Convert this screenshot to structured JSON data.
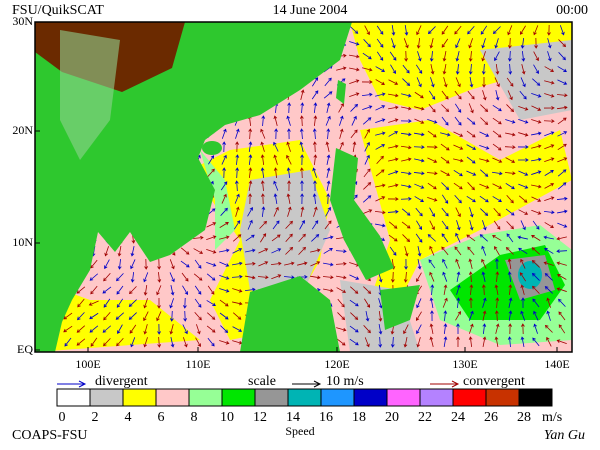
{
  "header": {
    "left": "FSU/QuikSCAT",
    "center": "14 June 2004",
    "right": "00:00"
  },
  "map": {
    "lat_labels": [
      "30N",
      "20N",
      "10N",
      "EQ"
    ],
    "lon_labels": [
      "100E",
      "110E",
      "120E",
      "130E",
      "140E"
    ]
  },
  "legend": {
    "divergent": "divergent",
    "divergent_color": "#0000c8",
    "scale": "scale",
    "scale_value": "10 m/s",
    "convergent": "convergent",
    "convergent_color": "#a00000"
  },
  "colorbar": {
    "labels": [
      0,
      2,
      4,
      6,
      8,
      10,
      12,
      14,
      16,
      18,
      20,
      22,
      24,
      26,
      28
    ],
    "unit": "m/s",
    "title": "Speed",
    "colors": [
      "#ffffff",
      "#c8c8c8",
      "#ffff00",
      "#ffc8c8",
      "#96ff96",
      "#00e600",
      "#969696",
      "#00b4b4",
      "#1e96ff",
      "#0000c8",
      "#ff64ff",
      "#b482ff",
      "#ff0000",
      "#c83200",
      "#000000"
    ]
  },
  "footer": {
    "left": "COAPS-FSU",
    "right": "Yan Gu"
  }
}
